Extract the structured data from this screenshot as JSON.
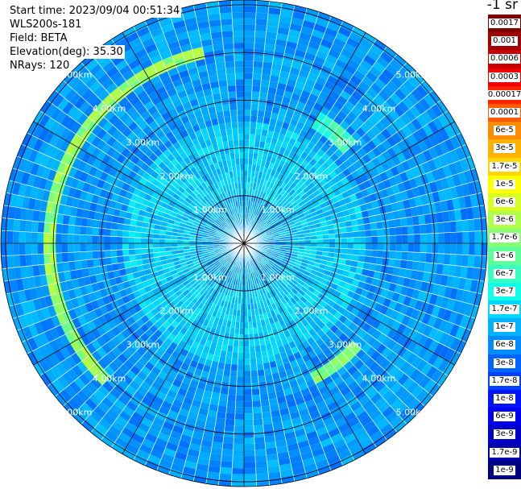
{
  "header": {
    "start_time": "Start time: 2023/09/04 00:51:34",
    "instrument": "WLS200s-181",
    "field": "Field: BETA",
    "elevation": "Elevation(deg): 35.30",
    "nrays": "NRays: 120"
  },
  "colorbar": {
    "unit_label": "-1 sr",
    "labels": [
      "0.0017",
      "0.001",
      "0.0006",
      "0.0003",
      "0.00017",
      "0.0001",
      "6e-5",
      "3e-5",
      "1.7e-5",
      "1e-5",
      "6e-6",
      "3e-6",
      "1.7e-6",
      "1e-6",
      "6e-7",
      "3e-7",
      "1.7e-7",
      "1e-7",
      "6e-8",
      "3e-8",
      "1.7e-8",
      "1e-8",
      "6e-9",
      "3e-9",
      "1.7e-9",
      "1e-9"
    ],
    "colors": [
      "#7f0000",
      "#a30000",
      "#c80000",
      "#ee0000",
      "#ff2200",
      "#ff5a00",
      "#ff8c00",
      "#ffb300",
      "#ffd700",
      "#ffff00",
      "#d7ff1f",
      "#b0ff47",
      "#87ff70",
      "#5fff98",
      "#38ffc1",
      "#10ffe9",
      "#00d7ff",
      "#00b2ff",
      "#008cff",
      "#0064ff",
      "#0040ff",
      "#0014ff",
      "#0000ee",
      "#0000c8",
      "#0000a3",
      "#00007f"
    ]
  },
  "range_labels": [
    "1.00km",
    "2.00km",
    "3.00km",
    "4.00km",
    "5.00km"
  ],
  "chart_data": {
    "type": "heatmap",
    "projection": "polar",
    "field": "BETA",
    "instrument": "WLS200s-181",
    "start_time": "2023/09/04 00:51:34",
    "elevation_deg": 35.3,
    "n_rays": 120,
    "range_rings_km": [
      1,
      2,
      3,
      4,
      5
    ],
    "range_label_angles_deg": [
      45,
      135,
      225,
      315
    ],
    "max_range_km": 5.1,
    "colormap_levels": [
      0.0017,
      0.001,
      0.0006,
      0.0003,
      0.00017,
      0.0001,
      6e-05,
      3e-05,
      1.7e-05,
      1e-05,
      6e-06,
      3e-06,
      1.7e-06,
      1e-06,
      6e-07,
      3e-07,
      1.7e-07,
      1e-07,
      6e-08,
      3e-08,
      1.7e-08,
      1e-08,
      6e-09,
      3e-09,
      1.7e-09,
      1e-09
    ],
    "features": [
      {
        "kind": "arc",
        "from_az_deg": 225,
        "to_az_deg": 345,
        "range_km": 4.1,
        "level": "1.7e-6 to 1e-5"
      },
      {
        "kind": "arc",
        "from_az_deg": 130,
        "to_az_deg": 150,
        "range_km": 3.2,
        "level": "1.7e-6 to 1e-5"
      },
      {
        "kind": "arc",
        "from_az_deg": 30,
        "to_az_deg": 45,
        "range_km": 3.0,
        "level": "1e-7 to 1.7e-6"
      }
    ],
    "background_level": "1e-8 to 1e-7",
    "inner_level": "1e-7 to 3e-7"
  }
}
